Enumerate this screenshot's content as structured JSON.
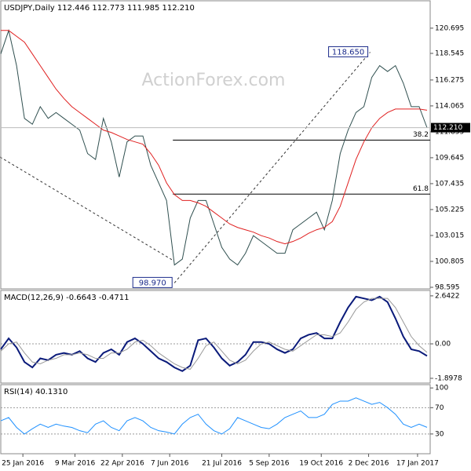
{
  "chart_data": [
    {
      "type": "line",
      "title": "USDJPY,Daily 112.446 112.773 111.985 112.210",
      "watermark": "ActionForex.com",
      "x": [
        0,
        5,
        10,
        15,
        20,
        25,
        30,
        35,
        40,
        45,
        50,
        55,
        60,
        65,
        70,
        75,
        80,
        85,
        90,
        95,
        100,
        105,
        110,
        115,
        120,
        125,
        130,
        135,
        140,
        145,
        150,
        155,
        160,
        165,
        170,
        175,
        180,
        185,
        190,
        195,
        200,
        205,
        210,
        215,
        220,
        225,
        230,
        235,
        240,
        245,
        250,
        255,
        260,
        265,
        270
      ],
      "xlim": [
        0,
        272
      ],
      "ylim": [
        98.46,
        123.03
      ],
      "yticks": [
        120.695,
        118.545,
        116.275,
        114.065,
        111.855,
        109.645,
        107.435,
        105.225,
        103.015,
        100.805,
        98.595
      ],
      "series": [
        {
          "name": "USDJPY",
          "color": "#2f4f4f",
          "values": [
            118.5,
            120.5,
            117.5,
            113,
            112.5,
            114,
            113,
            113.5,
            113,
            112.5,
            112,
            110,
            109.5,
            113,
            111,
            108,
            111,
            111.5,
            111.5,
            109,
            107.5,
            106,
            100.5,
            101,
            104.5,
            106,
            106,
            104,
            102,
            101,
            100.5,
            101.5,
            103,
            102.5,
            102,
            101.5,
            101.5,
            103.5,
            104,
            104.5,
            105,
            103.5,
            106,
            110,
            112,
            113.5,
            114,
            116.5,
            117.5,
            117,
            117.5,
            116,
            114,
            114,
            112.21
          ]
        },
        {
          "name": "MA",
          "color": "#e02020",
          "values": [
            120.5,
            120.5,
            120,
            119.5,
            118.5,
            117.5,
            116.5,
            115.5,
            114.7,
            114,
            113.5,
            113,
            112.5,
            112,
            111.8,
            111.5,
            111.2,
            111,
            110.8,
            110,
            109,
            107.5,
            106.5,
            106,
            106,
            105.8,
            105.5,
            105,
            104.5,
            104,
            103.7,
            103.5,
            103.3,
            103,
            102.8,
            102.5,
            102.3,
            102.5,
            102.8,
            103.2,
            103.5,
            103.7,
            104.2,
            105.5,
            107.5,
            109.5,
            111,
            112.2,
            113,
            113.5,
            113.8,
            113.8,
            113.8,
            113.8,
            113.7
          ]
        }
      ],
      "last_price": {
        "value": 112.21,
        "label": "112.210"
      },
      "pivots": [
        {
          "x": 234,
          "value": 118.65,
          "label": "118.650"
        },
        {
          "x": 110,
          "value": 98.97,
          "label": "98.970"
        }
      ],
      "fib_levels": [
        {
          "value": 111.15,
          "label": "38.2",
          "x": 109
        },
        {
          "value": 106.54,
          "label": "61.8",
          "x": 109
        }
      ]
    },
    {
      "type": "line",
      "title": "MACD(12,26,9) -0.6643 -0.4711",
      "x": [
        0,
        5,
        10,
        15,
        20,
        25,
        30,
        35,
        40,
        45,
        50,
        55,
        60,
        65,
        70,
        75,
        80,
        85,
        90,
        95,
        100,
        105,
        110,
        115,
        120,
        125,
        130,
        135,
        140,
        145,
        150,
        155,
        160,
        165,
        170,
        175,
        180,
        185,
        190,
        195,
        200,
        205,
        210,
        215,
        220,
        225,
        230,
        235,
        240,
        245,
        250,
        255,
        260,
        265,
        270
      ],
      "xlim": [
        0,
        272
      ],
      "ylim": [
        -2.16,
        2.94
      ],
      "yticks": [
        2.6422,
        {
          "value": 0,
          "label": "0.00"
        },
        -1.8978
      ],
      "zero_line": true,
      "series": [
        {
          "name": "MACD",
          "color": "#0a1a7a",
          "values": [
            -0.3,
            0.3,
            -0.2,
            -1.0,
            -1.3,
            -0.8,
            -0.9,
            -0.6,
            -0.5,
            -0.6,
            -0.4,
            -0.8,
            -1.0,
            -0.5,
            -0.3,
            -0.6,
            0.1,
            0.3,
            0.0,
            -0.4,
            -0.8,
            -1.0,
            -1.3,
            -1.5,
            -1.2,
            0.2,
            0.3,
            -0.2,
            -0.8,
            -1.2,
            -1.0,
            -0.6,
            0.1,
            0.1,
            0.0,
            -0.3,
            -0.5,
            -0.3,
            0.3,
            0.5,
            0.6,
            0.3,
            0.3,
            1.2,
            2.0,
            2.6,
            2.5,
            2.4,
            2.6,
            2.3,
            1.4,
            0.4,
            -0.3,
            -0.4,
            -0.6643
          ]
        },
        {
          "name": "Signal",
          "color": "#999999",
          "values": [
            -0.4,
            0.0,
            0.1,
            -0.5,
            -1.0,
            -1.1,
            -0.9,
            -0.8,
            -0.6,
            -0.6,
            -0.5,
            -0.6,
            -0.8,
            -0.8,
            -0.5,
            -0.5,
            -0.3,
            0.1,
            0.2,
            -0.1,
            -0.5,
            -0.8,
            -1.1,
            -1.3,
            -1.4,
            -0.8,
            -0.1,
            0.1,
            -0.4,
            -0.9,
            -1.1,
            -0.9,
            -0.4,
            0.0,
            0.1,
            -0.1,
            -0.3,
            -0.4,
            -0.1,
            0.2,
            0.5,
            0.5,
            0.4,
            0.6,
            1.2,
            1.9,
            2.3,
            2.5,
            2.5,
            2.5,
            2.0,
            1.2,
            0.4,
            -0.1,
            -0.4711
          ]
        }
      ]
    },
    {
      "type": "line",
      "title": "RSI(14) 40.1310",
      "x": [
        0,
        5,
        10,
        15,
        20,
        25,
        30,
        35,
        40,
        45,
        50,
        55,
        60,
        65,
        70,
        75,
        80,
        85,
        90,
        95,
        100,
        105,
        110,
        115,
        120,
        125,
        130,
        135,
        140,
        145,
        150,
        155,
        160,
        165,
        170,
        175,
        180,
        185,
        190,
        195,
        200,
        205,
        210,
        215,
        220,
        225,
        230,
        235,
        240,
        245,
        250,
        255,
        260,
        265,
        270
      ],
      "xlim": [
        0,
        272
      ],
      "ylim": [
        0,
        105
      ],
      "yticks": [
        100,
        70,
        30
      ],
      "dotted_levels": [
        70,
        30
      ],
      "xticks": [
        {
          "value": 14,
          "label": "25 Jan 2016"
        },
        {
          "value": 47,
          "label": "9 Mar 2016"
        },
        {
          "value": 77,
          "label": "22 Apr 2016"
        },
        {
          "value": 107,
          "label": "7 Jun 2016"
        },
        {
          "value": 140,
          "label": "21 Jul 2016"
        },
        {
          "value": 170,
          "label": "5 Sep 2016"
        },
        {
          "value": 203,
          "label": "19 Oct 2016"
        },
        {
          "value": 233,
          "label": "2 Dec 2016"
        },
        {
          "value": 264,
          "label": "17 Jan 2017"
        }
      ],
      "series": [
        {
          "name": "RSI",
          "color": "#1e90ff",
          "values": [
            50,
            55,
            40,
            30,
            38,
            45,
            40,
            45,
            42,
            40,
            35,
            32,
            45,
            50,
            40,
            35,
            50,
            55,
            50,
            40,
            35,
            33,
            30,
            45,
            55,
            60,
            45,
            35,
            30,
            38,
            55,
            50,
            45,
            40,
            38,
            45,
            55,
            60,
            65,
            55,
            55,
            60,
            75,
            80,
            80,
            85,
            80,
            75,
            78,
            70,
            60,
            45,
            40,
            45,
            40.131
          ]
        }
      ]
    }
  ]
}
